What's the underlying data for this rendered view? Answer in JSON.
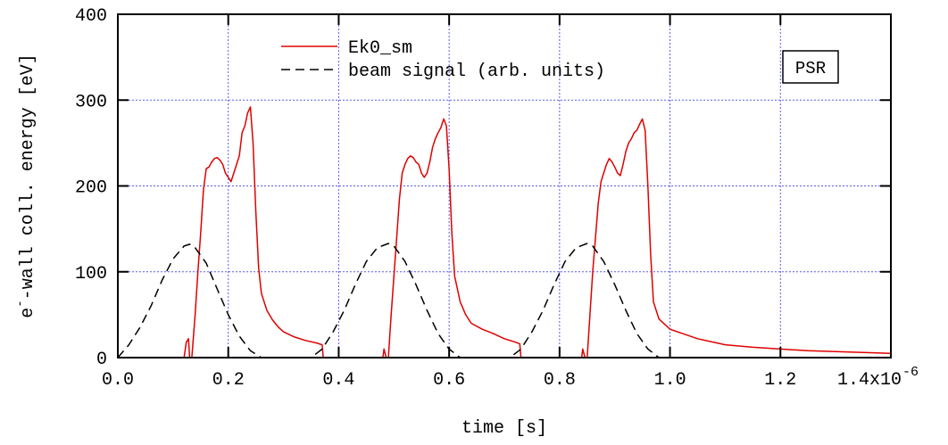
{
  "chart_data": {
    "type": "line",
    "xlabel": "time [s]",
    "ylabel_parts": {
      "pre": "e",
      "sup": "-",
      "post": "-wall coll. energy [eV]"
    },
    "xlim": [
      0,
      1.4e-06
    ],
    "ylim": [
      0,
      400
    ],
    "x_ticks": [
      0,
      2e-07,
      4e-07,
      6e-07,
      8e-07,
      1e-06,
      1.2e-06,
      1.4e-06
    ],
    "x_tick_labels": [
      "0.0",
      "0.2",
      "0.4",
      "0.6",
      "0.8",
      "1.0",
      "1.2",
      "1.4x10"
    ],
    "x_exponent": "-6",
    "y_ticks": [
      0,
      100,
      200,
      300,
      400
    ],
    "y_tick_labels": [
      "0",
      "100",
      "200",
      "300",
      "400"
    ],
    "grid": true,
    "legend_position": "top-center",
    "annotation": "PSR",
    "series": [
      {
        "name": "Ek0_sm",
        "color": "#e00000",
        "style": "solid",
        "points": [
          [
            0,
            0
          ],
          [
            1.2e-07,
            0
          ],
          [
            1.24e-07,
            18
          ],
          [
            1.28e-07,
            22
          ],
          [
            1.3e-07,
            0
          ],
          [
            1.34e-07,
            0
          ],
          [
            1.4e-07,
            50
          ],
          [
            1.45e-07,
            100
          ],
          [
            1.5e-07,
            145
          ],
          [
            1.55e-07,
            195
          ],
          [
            1.6e-07,
            220
          ],
          [
            1.65e-07,
            222
          ],
          [
            1.7e-07,
            228
          ],
          [
            1.75e-07,
            232
          ],
          [
            1.8e-07,
            233
          ],
          [
            1.85e-07,
            230
          ],
          [
            1.9e-07,
            225
          ],
          [
            1.95e-07,
            215
          ],
          [
            2e-07,
            210
          ],
          [
            2.05e-07,
            205
          ],
          [
            2.1e-07,
            215
          ],
          [
            2.15e-07,
            225
          ],
          [
            2.2e-07,
            235
          ],
          [
            2.25e-07,
            262
          ],
          [
            2.3e-07,
            270
          ],
          [
            2.35e-07,
            285
          ],
          [
            2.4e-07,
            292
          ],
          [
            2.45e-07,
            250
          ],
          [
            2.5e-07,
            170
          ],
          [
            2.55e-07,
            105
          ],
          [
            2.6e-07,
            75
          ],
          [
            2.7e-07,
            55
          ],
          [
            2.8e-07,
            44
          ],
          [
            2.9e-07,
            36
          ],
          [
            3e-07,
            30
          ],
          [
            3.2e-07,
            24
          ],
          [
            3.4e-07,
            20
          ],
          [
            3.6e-07,
            17
          ],
          [
            3.7e-07,
            15
          ],
          [
            3.72e-07,
            0
          ],
          [
            4.8e-07,
            0
          ],
          [
            4.82e-07,
            10
          ],
          [
            4.86e-07,
            0
          ],
          [
            4.9e-07,
            0
          ],
          [
            4.95e-07,
            50
          ],
          [
            5e-07,
            95
          ],
          [
            5.05e-07,
            140
          ],
          [
            5.1e-07,
            185
          ],
          [
            5.15e-07,
            215
          ],
          [
            5.2e-07,
            225
          ],
          [
            5.25e-07,
            232
          ],
          [
            5.3e-07,
            235
          ],
          [
            5.35e-07,
            233
          ],
          [
            5.4e-07,
            228
          ],
          [
            5.45e-07,
            225
          ],
          [
            5.5e-07,
            215
          ],
          [
            5.55e-07,
            210
          ],
          [
            5.6e-07,
            215
          ],
          [
            5.65e-07,
            228
          ],
          [
            5.7e-07,
            245
          ],
          [
            5.75e-07,
            255
          ],
          [
            5.8e-07,
            262
          ],
          [
            5.85e-07,
            268
          ],
          [
            5.9e-07,
            278
          ],
          [
            5.95e-07,
            270
          ],
          [
            6e-07,
            220
          ],
          [
            6.05e-07,
            145
          ],
          [
            6.1e-07,
            95
          ],
          [
            6.2e-07,
            65
          ],
          [
            6.3e-07,
            50
          ],
          [
            6.4e-07,
            40
          ],
          [
            6.6e-07,
            33
          ],
          [
            6.8e-07,
            28
          ],
          [
            7e-07,
            22
          ],
          [
            7.2e-07,
            18
          ],
          [
            7.28e-07,
            16
          ],
          [
            7.3e-07,
            0
          ],
          [
            8.4e-07,
            0
          ],
          [
            8.42e-07,
            10
          ],
          [
            8.46e-07,
            0
          ],
          [
            8.5e-07,
            0
          ],
          [
            8.55e-07,
            50
          ],
          [
            8.6e-07,
            100
          ],
          [
            8.65e-07,
            140
          ],
          [
            8.7e-07,
            180
          ],
          [
            8.75e-07,
            205
          ],
          [
            8.8e-07,
            215
          ],
          [
            8.85e-07,
            225
          ],
          [
            8.9e-07,
            232
          ],
          [
            8.95e-07,
            228
          ],
          [
            9e-07,
            222
          ],
          [
            9.05e-07,
            215
          ],
          [
            9.1e-07,
            212
          ],
          [
            9.15e-07,
            225
          ],
          [
            9.2e-07,
            240
          ],
          [
            9.25e-07,
            250
          ],
          [
            9.3e-07,
            255
          ],
          [
            9.35e-07,
            262
          ],
          [
            9.4e-07,
            265
          ],
          [
            9.45e-07,
            272
          ],
          [
            9.5e-07,
            278
          ],
          [
            9.55e-07,
            265
          ],
          [
            9.6e-07,
            200
          ],
          [
            9.65e-07,
            120
          ],
          [
            9.7e-07,
            65
          ],
          [
            9.8e-07,
            45
          ],
          [
            1e-06,
            33
          ],
          [
            1.05e-06,
            22
          ],
          [
            1.1e-06,
            15
          ],
          [
            1.15e-06,
            12
          ],
          [
            1.2e-06,
            10
          ],
          [
            1.25e-06,
            8
          ],
          [
            1.3e-06,
            7
          ],
          [
            1.35e-06,
            6
          ],
          [
            1.4e-06,
            5
          ]
        ]
      },
      {
        "name": "beam signal (arb. units)",
        "color": "#000000",
        "style": "dashed",
        "points": [
          [
            0,
            0
          ],
          [
            2e-08,
            15
          ],
          [
            4e-08,
            35
          ],
          [
            6e-08,
            60
          ],
          [
            8e-08,
            90
          ],
          [
            1e-07,
            115
          ],
          [
            1.2e-07,
            130
          ],
          [
            1.3e-07,
            132
          ],
          [
            1.4e-07,
            128
          ],
          [
            1.6e-07,
            110
          ],
          [
            1.8e-07,
            80
          ],
          [
            2e-07,
            50
          ],
          [
            2.2e-07,
            25
          ],
          [
            2.4e-07,
            8
          ],
          [
            2.6e-07,
            0
          ],
          [
            3.5e-07,
            0
          ],
          [
            3.7e-07,
            10
          ],
          [
            3.9e-07,
            30
          ],
          [
            4.1e-07,
            55
          ],
          [
            4.3e-07,
            85
          ],
          [
            4.5e-07,
            112
          ],
          [
            4.7e-07,
            128
          ],
          [
            4.9e-07,
            133
          ],
          [
            5e-07,
            130
          ],
          [
            5.2e-07,
            112
          ],
          [
            5.4e-07,
            85
          ],
          [
            5.6e-07,
            55
          ],
          [
            5.8e-07,
            28
          ],
          [
            6e-07,
            10
          ],
          [
            6.2e-07,
            0
          ],
          [
            7.1e-07,
            0
          ],
          [
            7.3e-07,
            10
          ],
          [
            7.5e-07,
            30
          ],
          [
            7.7e-07,
            55
          ],
          [
            7.9e-07,
            85
          ],
          [
            8.1e-07,
            112
          ],
          [
            8.3e-07,
            128
          ],
          [
            8.5e-07,
            133
          ],
          [
            8.6e-07,
            130
          ],
          [
            8.8e-07,
            112
          ],
          [
            9e-07,
            85
          ],
          [
            9.2e-07,
            55
          ],
          [
            9.4e-07,
            28
          ],
          [
            9.6e-07,
            10
          ],
          [
            9.8e-07,
            0
          ],
          [
            1e-06,
            0
          ]
        ]
      }
    ]
  }
}
